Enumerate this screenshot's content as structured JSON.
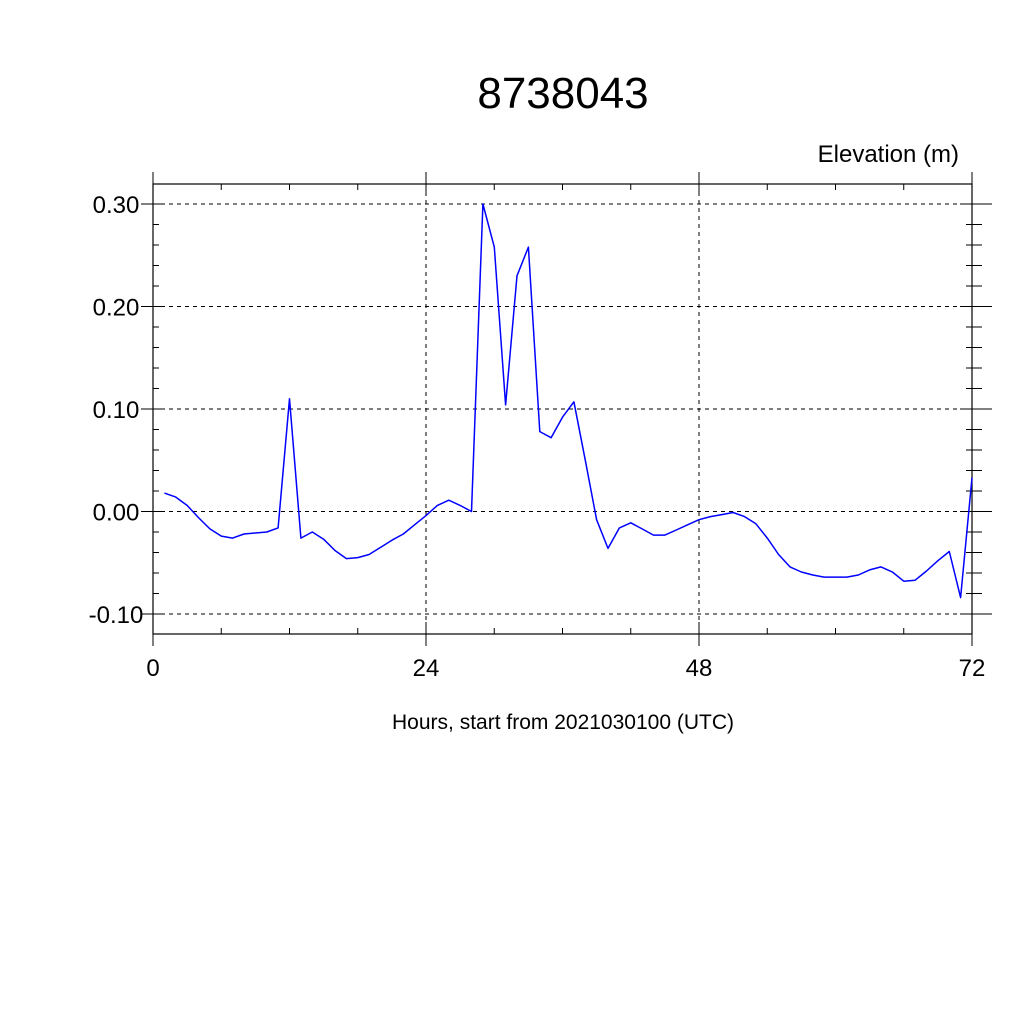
{
  "chart_data": {
    "type": "line",
    "title": "8738043",
    "ylabel": "Elevation (m)",
    "xlabel": "Hours, start from 2021030100 (UTC)",
    "xlim": [
      0,
      72
    ],
    "ylim": [
      -0.1,
      0.3
    ],
    "x_ticks": [
      0,
      24,
      48,
      72
    ],
    "x_tick_labels": [
      "0",
      "24",
      "48",
      "72"
    ],
    "x_minor_step": 6,
    "y_ticks": [
      -0.1,
      0.0,
      0.1,
      0.2,
      0.3
    ],
    "y_tick_labels": [
      "-0.10",
      "0.00",
      "0.10",
      "0.20",
      "0.30"
    ],
    "y_minor_step": 0.02,
    "grid": true,
    "line_color": "#0000ff",
    "series": [
      {
        "x": [
          1,
          2,
          3,
          4,
          5,
          6,
          7,
          8,
          9,
          10,
          11,
          12,
          13,
          14,
          15,
          16,
          17,
          18,
          19,
          20,
          21,
          22,
          23,
          24,
          25,
          26,
          27,
          28,
          29,
          30,
          31,
          32,
          33,
          34,
          35,
          36,
          37,
          38,
          39,
          40,
          41,
          42,
          43,
          44,
          45,
          46,
          47,
          48,
          49,
          50,
          51,
          52,
          53,
          54,
          55,
          56,
          57,
          58,
          59,
          60,
          61,
          62,
          63,
          64,
          65,
          66,
          67,
          68,
          69,
          70,
          71,
          72
        ],
        "y": [
          0.018,
          0.014,
          0.006,
          -0.006,
          -0.017,
          -0.024,
          -0.026,
          -0.022,
          -0.021,
          -0.02,
          -0.016,
          0.11,
          -0.026,
          -0.02,
          -0.027,
          -0.038,
          -0.046,
          -0.045,
          -0.042,
          -0.035,
          -0.028,
          -0.022,
          -0.013,
          -0.004,
          0.006,
          0.011,
          0.006,
          0.0,
          0.3,
          0.258,
          0.104,
          0.23,
          0.258,
          0.078,
          0.072,
          0.092,
          0.107,
          0.05,
          -0.008,
          -0.036,
          -0.016,
          -0.011,
          -0.017,
          -0.023,
          -0.023,
          -0.018,
          -0.013,
          -0.008,
          -0.005,
          -0.003,
          -0.001,
          -0.005,
          -0.012,
          -0.026,
          -0.042,
          -0.054,
          -0.059,
          -0.062,
          -0.064,
          -0.064,
          -0.064,
          -0.062,
          -0.057,
          -0.054,
          -0.059,
          -0.068,
          -0.067,
          -0.058,
          -0.048,
          -0.039,
          -0.084,
          0.033
        ]
      }
    ]
  }
}
